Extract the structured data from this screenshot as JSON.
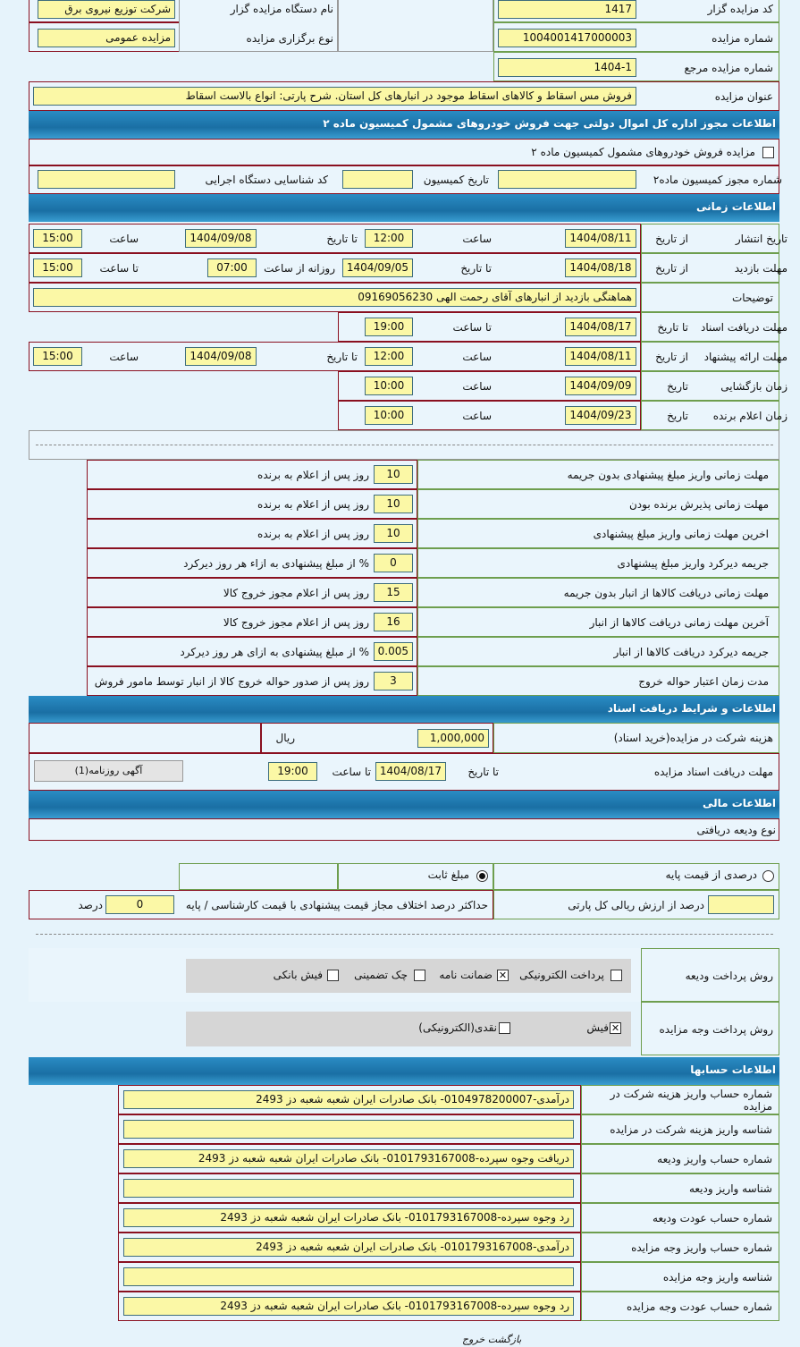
{
  "top": {
    "auctioneer_code_label": "کد مزایده گزار",
    "auctioneer_code": "1417",
    "org_name_label": "نام دستگاه مزایده گزار",
    "org_name": "شرکت توزیع نیروی برق",
    "auction_number_label": "شماره مزایده",
    "auction_number": "1004001417000003",
    "auction_type_label": "نوع برگزاری مزایده",
    "auction_type": "مزایده عمومی",
    "ref_number_label": "شماره مزایده مرجع",
    "ref_number": "1404-1",
    "title_label": "عنوان مزایده",
    "title": "فروش مس اسقاط و کالاهای اسقاط موجود در انبارهای کل استان. شرح پارتی: انواع بالاست اسقاط"
  },
  "commission": {
    "header": "اطلاعات مجوز اداره کل اموال دولتی جهت فروش خودروهای مشمول کمیسیون ماده ۲",
    "checkbox_label": "مزایده فروش خودروهای مشمول کمیسیون ماده ۲",
    "permit_label": "شماره مجوز کمیسیون ماده۲",
    "permit": "",
    "date_label": "تاریخ کمیسیون",
    "date": "",
    "org_id_label": "کد شناسایی دستگاه اجرایی",
    "org_id": ""
  },
  "timing": {
    "header": "اطلاعات زمانی",
    "publish": {
      "label": "تاریخ انتشار",
      "from_label": "از تاریخ",
      "from": "1404/08/11",
      "time_label": "ساعت",
      "time": "12:00",
      "to_label": "تا تاریخ",
      "to": "1404/09/08",
      "time2_label": "ساعت",
      "time2": "15:00"
    },
    "visit": {
      "label": "مهلت بازدید",
      "from_label": "از تاریخ",
      "from": "1404/08/18",
      "to_label": "تا تاریخ",
      "to": "1404/09/05",
      "daily_label": "روزانه از ساعت",
      "daily_from": "07:00",
      "until_label": "تا ساعت",
      "until": "15:00"
    },
    "description_label": "توضیحات",
    "description": "هماهنگی بازدید از انبارهای آقای رحمت الهی 09169056230",
    "docs": {
      "label": "مهلت دریافت اسناد",
      "to_label": "تا تاریخ",
      "to": "1404/08/17",
      "time_label": "تا ساعت",
      "time": "19:00"
    },
    "offer": {
      "label": "مهلت ارائه پیشنهاد",
      "from_label": "از تاریخ",
      "from": "1404/08/11",
      "time_label": "ساعت",
      "time": "12:00",
      "to_label": "تا تاریخ",
      "to": "1404/09/08",
      "time2_label": "ساعت",
      "time2": "15:00"
    },
    "opening": {
      "label": "زمان بازگشایی",
      "date_label": "تاریخ",
      "date": "1404/09/09",
      "time_label": "ساعت",
      "time": "10:00"
    },
    "winner": {
      "label": "زمان اعلام برنده",
      "date_label": "تاریخ",
      "date": "1404/09/23",
      "time_label": "ساعت",
      "time": "10:00"
    }
  },
  "conditions": [
    {
      "label": "مهلت زمانی واریز مبلغ پیشنهادی بدون جریمه",
      "value": "10",
      "unit": "روز پس از اعلام به برنده"
    },
    {
      "label": "مهلت زمانی پذیرش برنده بودن",
      "value": "10",
      "unit": "روز پس از اعلام به برنده"
    },
    {
      "label": "اخرین مهلت زمانی واریز مبلغ پیشنهادی",
      "value": "10",
      "unit": "روز پس از اعلام به برنده"
    },
    {
      "label": "جریمه دیرکرد واریز مبلغ پیشنهادی",
      "value": "0",
      "unit": "% از مبلغ پیشنهادی به ازاء هر روز دیرکرد"
    },
    {
      "label": "مهلت زمانی دریافت کالاها از انبار بدون جریمه",
      "value": "15",
      "unit": "روز پس از اعلام مجوز خروج کالا"
    },
    {
      "label": "آخرین مهلت زمانی دریافت کالاها از انبار",
      "value": "16",
      "unit": "روز پس از اعلام مجوز خروج کالا"
    },
    {
      "label": "جریمه دیرکرد دریافت کالاها از انبار",
      "value": "0.005",
      "unit": "% از مبلغ پیشنهادی به ازای هر روز دیرکرد"
    },
    {
      "label": "مدت زمان اعتبار حواله خروج",
      "value": "3",
      "unit": "روز پس از صدور حواله خروج کالا از انبار توسط مامور فروش"
    }
  ],
  "documents": {
    "header": "اطلاعات و شرایط دریافت اسناد",
    "fee_label": "هزینه شرکت در مزایده(خرید اسناد)",
    "fee": "1,000,000",
    "fee_unit": "ریال",
    "deadline_label": "مهلت دریافت اسناد مزایده",
    "to_label": "تا تاریخ",
    "to": "1404/08/17",
    "time_label": "تا ساعت",
    "time": "19:00",
    "ad_button": "آگهی روزنامه(1)"
  },
  "financial": {
    "header": "اطلاعات مالی",
    "deposit_type_label": "نوع ودیعه دریافتی",
    "percent_option": "درصدی از قیمت پایه",
    "fixed_option": "مبلغ ثابت",
    "selected": "fixed",
    "percent_value": "",
    "percent_unit": "درصد از ارزش ریالی کل پارتی",
    "max_diff_label": "حداکثر درصد اختلاف مجاز قیمت پیشنهادی با قیمت کارشناسی / پایه",
    "max_diff": "0",
    "max_diff_unit": "درصد",
    "deposit_method_label": "روش پرداخت ودیعه",
    "deposit_methods": [
      {
        "label": "پرداخت الکترونیکی",
        "checked": false
      },
      {
        "label": "ضمانت نامه",
        "checked": true
      },
      {
        "label": "چک تضمینی",
        "checked": false
      },
      {
        "label": "فیش بانکی",
        "checked": false
      }
    ],
    "payment_method_label": "روش پرداخت وجه مزایده",
    "payment_methods": [
      {
        "label": "فیش",
        "checked": true
      },
      {
        "label": "نقدی(الکترونیکی)",
        "checked": false
      }
    ]
  },
  "accounts": {
    "header": "اطلاعات حسابها",
    "rows": [
      {
        "label": "شماره حساب واریز هزینه شرکت در مزایده",
        "value": "درآمدی-0104978200007- بانک صادرات ایران شعبه شعبه دز 2493"
      },
      {
        "label": "شناسه واریز هزینه شرکت در مزایده",
        "value": ""
      },
      {
        "label": "شماره حساب واریز ودیعه",
        "value": "دریافت وجوه سپرده-0101793167008- بانک صادرات ایران شعبه   شعبه دز 2493"
      },
      {
        "label": "شناسه واریز ودیعه",
        "value": ""
      },
      {
        "label": "شماره حساب عودت ودیعه",
        "value": "رد وجوه سپرده-0101793167008- بانک صادرات ایران شعبه شعبه دز 2493"
      },
      {
        "label": "شماره حساب واریز وجه مزایده",
        "value": "درآمدی-0101793167008- بانک صادرات ایران شعبه شعبه دز 2493"
      },
      {
        "label": "شناسه واریز وجه مزایده",
        "value": ""
      },
      {
        "label": "شماره حساب عودت وجه مزایده",
        "value": "رد وجوه سپرده-0101793167008- بانک صادرات ایران شعبه شعبه دز 2493"
      }
    ]
  },
  "footer": {
    "back": "بازگشت",
    "exit": "خروج"
  }
}
